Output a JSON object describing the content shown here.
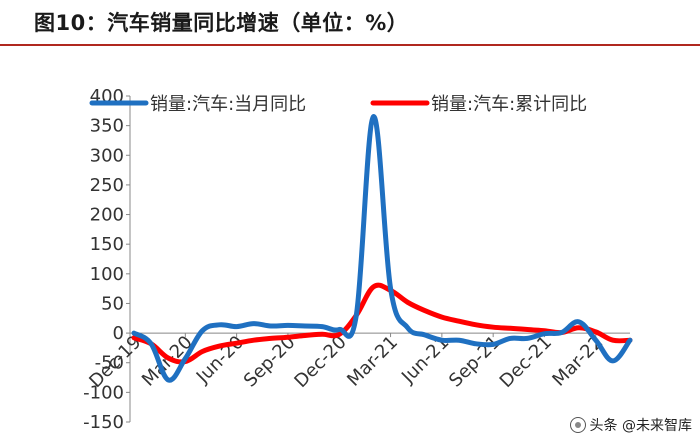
{
  "title": "图10：汽车销量同比增速（单位：%）",
  "watermark": {
    "text": "头条 @未来智库"
  },
  "colors": {
    "monthly": "#1f70c1",
    "cumulative": "#ff0000",
    "title_rule": "#b0281f"
  },
  "chart_data": {
    "type": "line",
    "title": "",
    "xlabel": "",
    "ylabel": "",
    "ylim": [
      -150,
      400
    ],
    "yticks": [
      400,
      350,
      300,
      250,
      200,
      150,
      100,
      50,
      0,
      -50,
      -100,
      -150
    ],
    "x_tick_labels": [
      "Dec-19",
      "Mar-20",
      "Jun-20",
      "Sep-20",
      "Dec-20",
      "Mar-21",
      "Jun-21",
      "Sep-21",
      "Dec-21",
      "Mar-22"
    ],
    "legend_position": "top",
    "grid": false,
    "months": [
      "2019-12",
      "2020-01",
      "2020-02",
      "2020-03",
      "2020-04",
      "2020-05",
      "2020-06",
      "2020-07",
      "2020-08",
      "2020-09",
      "2020-10",
      "2020-11",
      "2020-12",
      "2021-01",
      "2021-02",
      "2021-03",
      "2021-04",
      "2021-05",
      "2021-06",
      "2021-07",
      "2021-08",
      "2021-09",
      "2021-10",
      "2021-11",
      "2021-12",
      "2022-01",
      "2022-02",
      "2022-03",
      "2022-04",
      "2022-05"
    ],
    "series": [
      {
        "name": "销量:汽车:当月同比",
        "values": [
          0,
          -18,
          -79,
          -43,
          4,
          14,
          11,
          16,
          12,
          13,
          12,
          11,
          6,
          30,
          365,
          75,
          9,
          -3,
          -12,
          -12,
          -18,
          -19,
          -9,
          -9,
          -1,
          1,
          19,
          -12,
          -47,
          -12
        ]
      },
      {
        "name": "销量:汽车:累计同比",
        "values": [
          -8,
          -18,
          -42,
          -48,
          -31,
          -22,
          -17,
          -12,
          -9,
          -7,
          -4,
          -2,
          -2,
          30,
          78,
          72,
          52,
          38,
          27,
          20,
          14,
          10,
          8,
          6,
          4,
          1,
          9,
          2,
          -12,
          -12
        ]
      }
    ]
  }
}
